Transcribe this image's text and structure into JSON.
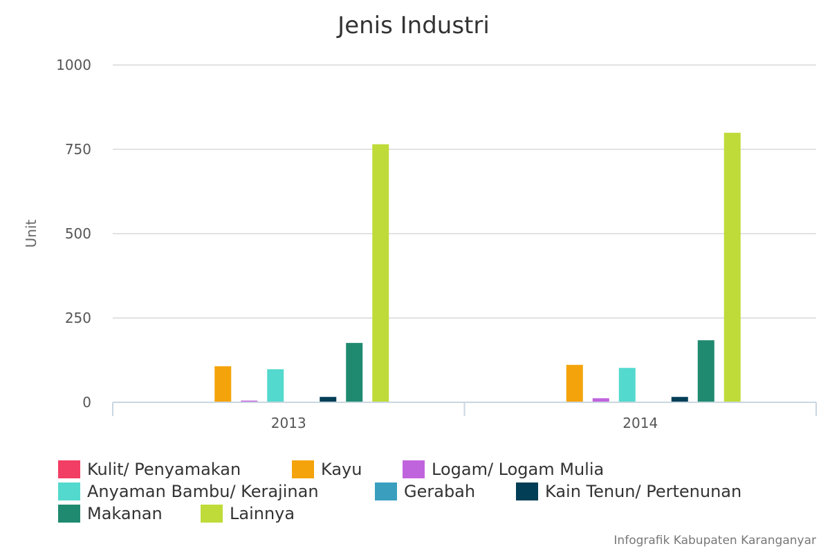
{
  "chart_data": {
    "type": "bar",
    "title": "Jenis Industri",
    "ylabel": "Unit",
    "xlabel": "",
    "ylim": [
      0,
      1000
    ],
    "yticks": [
      0,
      250,
      500,
      750,
      1000
    ],
    "categories": [
      "2013",
      "2014"
    ],
    "grid": true,
    "legend_position": "bottom",
    "series": [
      {
        "name": "Kulit/ Penyamakan",
        "color": "#f23d64",
        "values": [
          0,
          0
        ]
      },
      {
        "name": "Kayu",
        "color": "#f4a30a",
        "values": [
          107,
          111
        ]
      },
      {
        "name": "Logam/ Logam Mulia",
        "color": "#c064de",
        "values": [
          5,
          12
        ]
      },
      {
        "name": "Anyaman Bambu/ Kerajinan",
        "color": "#54d9ce",
        "values": [
          98,
          102
        ]
      },
      {
        "name": "Gerabah",
        "color": "#3a9fbf",
        "values": [
          0,
          0
        ]
      },
      {
        "name": "Kain Tenun/ Pertenunan",
        "color": "#023e56",
        "values": [
          16,
          16
        ]
      },
      {
        "name": "Makanan",
        "color": "#1f8a70",
        "values": [
          176,
          184
        ]
      },
      {
        "name": "Lainnya",
        "color": "#bedb39",
        "values": [
          765,
          799
        ]
      }
    ]
  },
  "footer": {
    "credit": "Infografik Kabupaten Karanganyar"
  }
}
